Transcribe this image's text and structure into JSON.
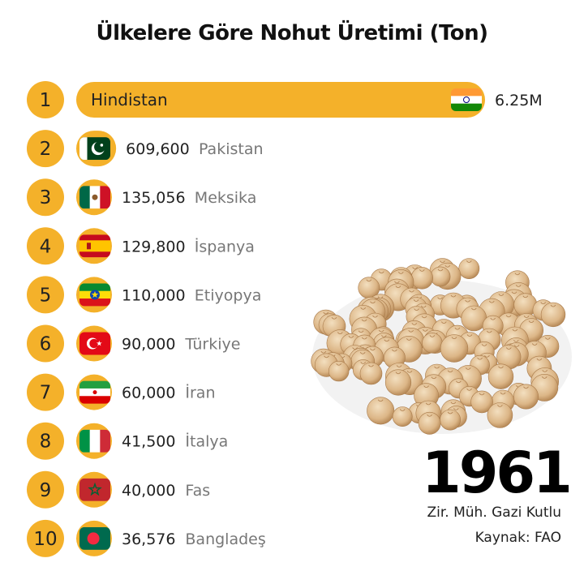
{
  "title": "Ülkelere Göre Nohut Üretimi (Ton)",
  "year": "1961",
  "author": "Zir. Müh. Gazi Kutlu",
  "source": "Kaynak: FAO",
  "colors": {
    "accent": "#f4b12a",
    "country_label": "#777777",
    "text": "#222222"
  },
  "chart_data": {
    "type": "bar",
    "title": "Ülkelere Göre Nohut Üretimi (Ton)",
    "orientation": "horizontal",
    "categories": [
      "Hindistan",
      "Pakistan",
      "Meksika",
      "İspanya",
      "Etiyopya",
      "Türkiye",
      "İran",
      "İtalya",
      "Fas",
      "Bangladeş"
    ],
    "values": [
      6250000,
      609600,
      135056,
      129800,
      110000,
      90000,
      60000,
      41500,
      40000,
      36576
    ],
    "value_labels": [
      "6.25M",
      "609,600",
      "135,056",
      "129,800",
      "110,000",
      "90,000",
      "60,000",
      "41,500",
      "40,000",
      "36,576"
    ],
    "ranks": [
      "1",
      "2",
      "3",
      "4",
      "5",
      "6",
      "7",
      "8",
      "9",
      "10"
    ],
    "flags": [
      "india-flag",
      "pakistan-flag",
      "mexico-flag",
      "spain-flag",
      "ethiopia-flag",
      "turkey-flag",
      "iran-flag",
      "italy-flag",
      "morocco-flag",
      "bangladesh-flag"
    ],
    "year": "1961",
    "image": "chickpeas-pile"
  }
}
